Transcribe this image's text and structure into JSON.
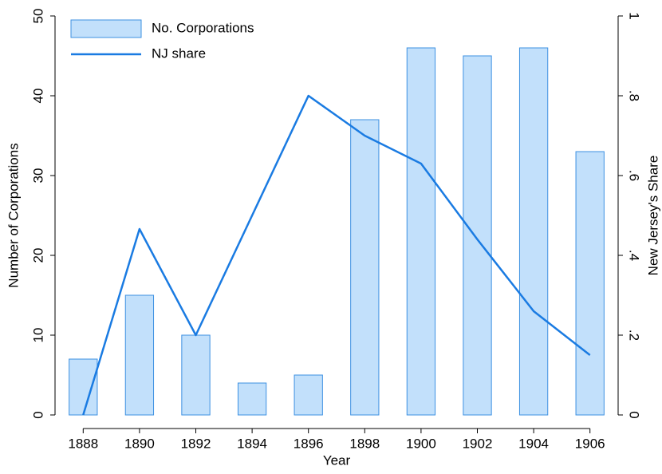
{
  "chart_data": {
    "type": "bar",
    "x": [
      1888,
      1890,
      1892,
      1894,
      1896,
      1898,
      1900,
      1902,
      1904,
      1906
    ],
    "series": [
      {
        "name": "No. Corporations",
        "type": "bar",
        "color": "#c2e0fb",
        "edgecolor": "#3c90e2",
        "values": [
          7,
          15,
          10,
          4,
          5,
          37,
          46,
          45,
          46,
          33
        ]
      },
      {
        "name": "NJ share",
        "type": "line",
        "axis": "y2",
        "color": "#1a7be2",
        "values": [
          0,
          0.466,
          0.2,
          0.5,
          0.8,
          0.7,
          0.63,
          0.44,
          0.26,
          0.15
        ]
      }
    ],
    "xlabel": "Year",
    "ylabel": "Number of Corporations",
    "y2label": "New Jersey's Share",
    "xlim": [
      1887,
      1907
    ],
    "xticks": [
      1888,
      1890,
      1892,
      1894,
      1896,
      1898,
      1900,
      1902,
      1904,
      1906
    ],
    "ylim": [
      0,
      50
    ],
    "yticks": [
      0,
      10,
      20,
      30,
      40,
      50
    ],
    "y2lim": [
      0,
      1
    ],
    "y2ticks": [
      0,
      {
        "value": 0.2,
        "label": ".2"
      },
      {
        "value": 0.4,
        "label": ".4"
      },
      {
        "value": 0.6,
        "label": ".6"
      },
      {
        "value": 0.8,
        "label": ".8"
      },
      1
    ],
    "legend": "upper left",
    "grid": false
  }
}
